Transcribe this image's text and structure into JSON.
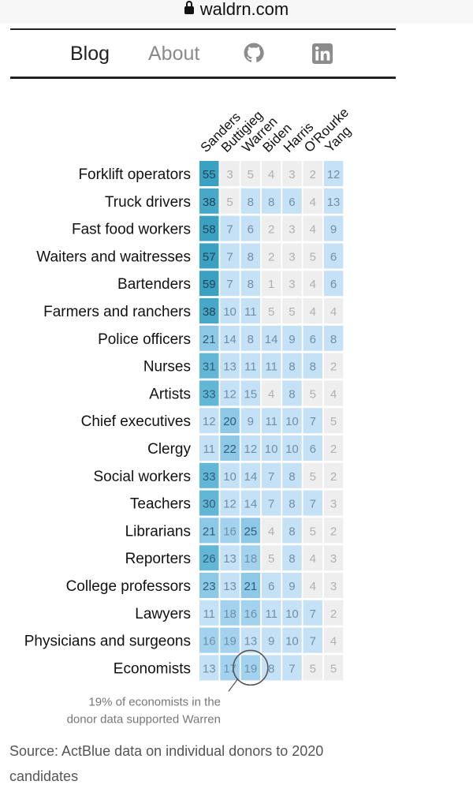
{
  "browser": {
    "url": "waldrn.com"
  },
  "nav": {
    "blog": "Blog",
    "about": "About"
  },
  "chart_data": {
    "type": "heatmap",
    "columns": [
      "Sanders",
      "Buttigieg",
      "Warren",
      "Biden",
      "Harris",
      "O'Rourke",
      "Yang"
    ],
    "rows": [
      {
        "label": "Forklift operators",
        "values": [
          55,
          3,
          5,
          4,
          3,
          2,
          12
        ]
      },
      {
        "label": "Truck drivers",
        "values": [
          38,
          5,
          8,
          8,
          6,
          4,
          13
        ]
      },
      {
        "label": "Fast food workers",
        "values": [
          58,
          7,
          6,
          2,
          3,
          4,
          9
        ]
      },
      {
        "label": "Waiters and waitresses",
        "values": [
          57,
          7,
          8,
          2,
          3,
          5,
          6
        ]
      },
      {
        "label": "Bartenders",
        "values": [
          59,
          7,
          8,
          1,
          3,
          4,
          6
        ]
      },
      {
        "label": "Farmers and ranchers",
        "values": [
          38,
          10,
          11,
          5,
          5,
          4,
          4
        ]
      },
      {
        "label": "Police officers",
        "values": [
          21,
          14,
          8,
          14,
          9,
          6,
          8
        ]
      },
      {
        "label": "Nurses",
        "values": [
          31,
          13,
          11,
          11,
          8,
          8,
          2
        ]
      },
      {
        "label": "Artists",
        "values": [
          33,
          12,
          15,
          4,
          8,
          5,
          4
        ]
      },
      {
        "label": "Chief executives",
        "values": [
          12,
          20,
          9,
          11,
          10,
          7,
          5
        ]
      },
      {
        "label": "Clergy",
        "values": [
          11,
          22,
          12,
          10,
          10,
          6,
          2
        ]
      },
      {
        "label": "Social workers",
        "values": [
          33,
          10,
          14,
          7,
          8,
          5,
          2
        ]
      },
      {
        "label": "Teachers",
        "values": [
          30,
          12,
          14,
          7,
          8,
          7,
          3
        ]
      },
      {
        "label": "Librarians",
        "values": [
          21,
          16,
          25,
          4,
          8,
          5,
          2
        ]
      },
      {
        "label": "Reporters",
        "values": [
          26,
          13,
          18,
          5,
          8,
          4,
          3
        ]
      },
      {
        "label": "College professors",
        "values": [
          23,
          13,
          21,
          6,
          9,
          4,
          3
        ]
      },
      {
        "label": "Lawyers",
        "values": [
          11,
          18,
          16,
          11,
          10,
          7,
          2
        ]
      },
      {
        "label": "Physicians and surgeons",
        "values": [
          16,
          19,
          13,
          9,
          10,
          7,
          4
        ]
      },
      {
        "label": "Economists",
        "values": [
          13,
          17,
          19,
          8,
          7,
          5,
          5
        ]
      }
    ],
    "annotation": {
      "line1": "19% of economists in the",
      "line2": "donor data supported Warren",
      "row": 18,
      "col": 2
    },
    "source": "Source: ActBlue data on individual donors to 2020 candidates"
  }
}
